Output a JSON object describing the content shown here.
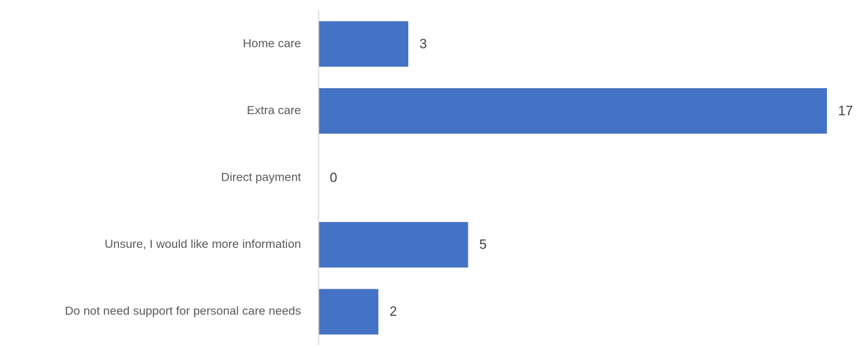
{
  "chart_data": {
    "type": "bar",
    "orientation": "horizontal",
    "categories": [
      "Home care",
      "Extra care",
      "Direct payment",
      "Unsure, I would like more information",
      "Do not need support for personal care needs"
    ],
    "values": [
      3,
      17,
      0,
      5,
      2
    ],
    "xlim": [
      0,
      17
    ],
    "grid": false,
    "legend": "none",
    "data_labels": true
  },
  "colors": {
    "bar": "#4472c4",
    "axis": "#d9d9d9",
    "category_text": "#595959",
    "value_text": "#404040"
  }
}
